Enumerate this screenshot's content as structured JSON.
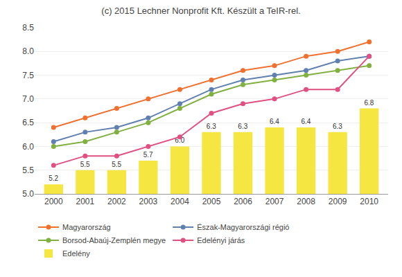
{
  "chart_data": {
    "type": "combo",
    "title": "(c) 2015 Lechner Nonprofit Kft. Készült a TeIR-rel.",
    "x": [
      2000,
      2001,
      2002,
      2003,
      2004,
      2005,
      2006,
      2007,
      2008,
      2009,
      2010
    ],
    "series": [
      {
        "name": "Magyarország",
        "type": "line",
        "color": "#f07030",
        "marker": "circle",
        "line_style": "solid",
        "values": [
          6.4,
          6.6,
          6.8,
          7.0,
          7.2,
          7.4,
          7.6,
          7.7,
          7.9,
          8.0,
          8.2
        ]
      },
      {
        "name": "Észak-Magyarországi régió",
        "type": "line",
        "color": "#6080b0",
        "marker": "circle",
        "line_style": "solid",
        "values": [
          6.1,
          6.3,
          6.4,
          6.6,
          6.9,
          7.2,
          7.4,
          7.5,
          7.6,
          7.8,
          7.9
        ]
      },
      {
        "name": "Borsod-Abaúj-Zemplén megye",
        "type": "line",
        "color": "#80b040",
        "marker": "circle",
        "line_style": "solid",
        "values": [
          6.0,
          6.1,
          6.3,
          6.5,
          6.8,
          7.1,
          7.3,
          7.4,
          7.5,
          7.6,
          7.7
        ]
      },
      {
        "name": "Edelényi járás",
        "type": "line",
        "color": "#e05080",
        "marker": "circle",
        "line_style": "solid",
        "values": [
          5.6,
          5.8,
          5.8,
          6.0,
          6.2,
          6.7,
          6.9,
          7.0,
          7.2,
          7.2,
          7.9
        ]
      },
      {
        "name": "Edelény",
        "type": "bar",
        "color": "#f5e642",
        "data_labels": true,
        "values": [
          5.2,
          5.5,
          5.5,
          5.7,
          6.0,
          6.3,
          6.3,
          6.4,
          6.4,
          6.3,
          6.8
        ],
        "value_labels": [
          "5.2",
          "5.5",
          "5.5",
          "5.7",
          "6.0",
          "6.3",
          "6.3",
          "6.4",
          "6.4",
          "6.3",
          "6.8"
        ]
      }
    ],
    "xlim": [
      1999.4,
      2010.6
    ],
    "xticks": [
      2000,
      2001,
      2002,
      2003,
      2004,
      2005,
      2006,
      2007,
      2008,
      2009,
      2010
    ],
    "ylim": [
      5.0,
      8.5
    ],
    "yticks": [
      {
        "value": 5.0,
        "label": "5.0"
      },
      5.5,
      {
        "value": 6.0,
        "label": "6.0"
      },
      6.5,
      {
        "value": 7.0,
        "label": "7.0"
      },
      7.5,
      {
        "value": 8.0,
        "label": "8.0"
      },
      8.5
    ],
    "grid": "y",
    "legend": "bottom"
  }
}
